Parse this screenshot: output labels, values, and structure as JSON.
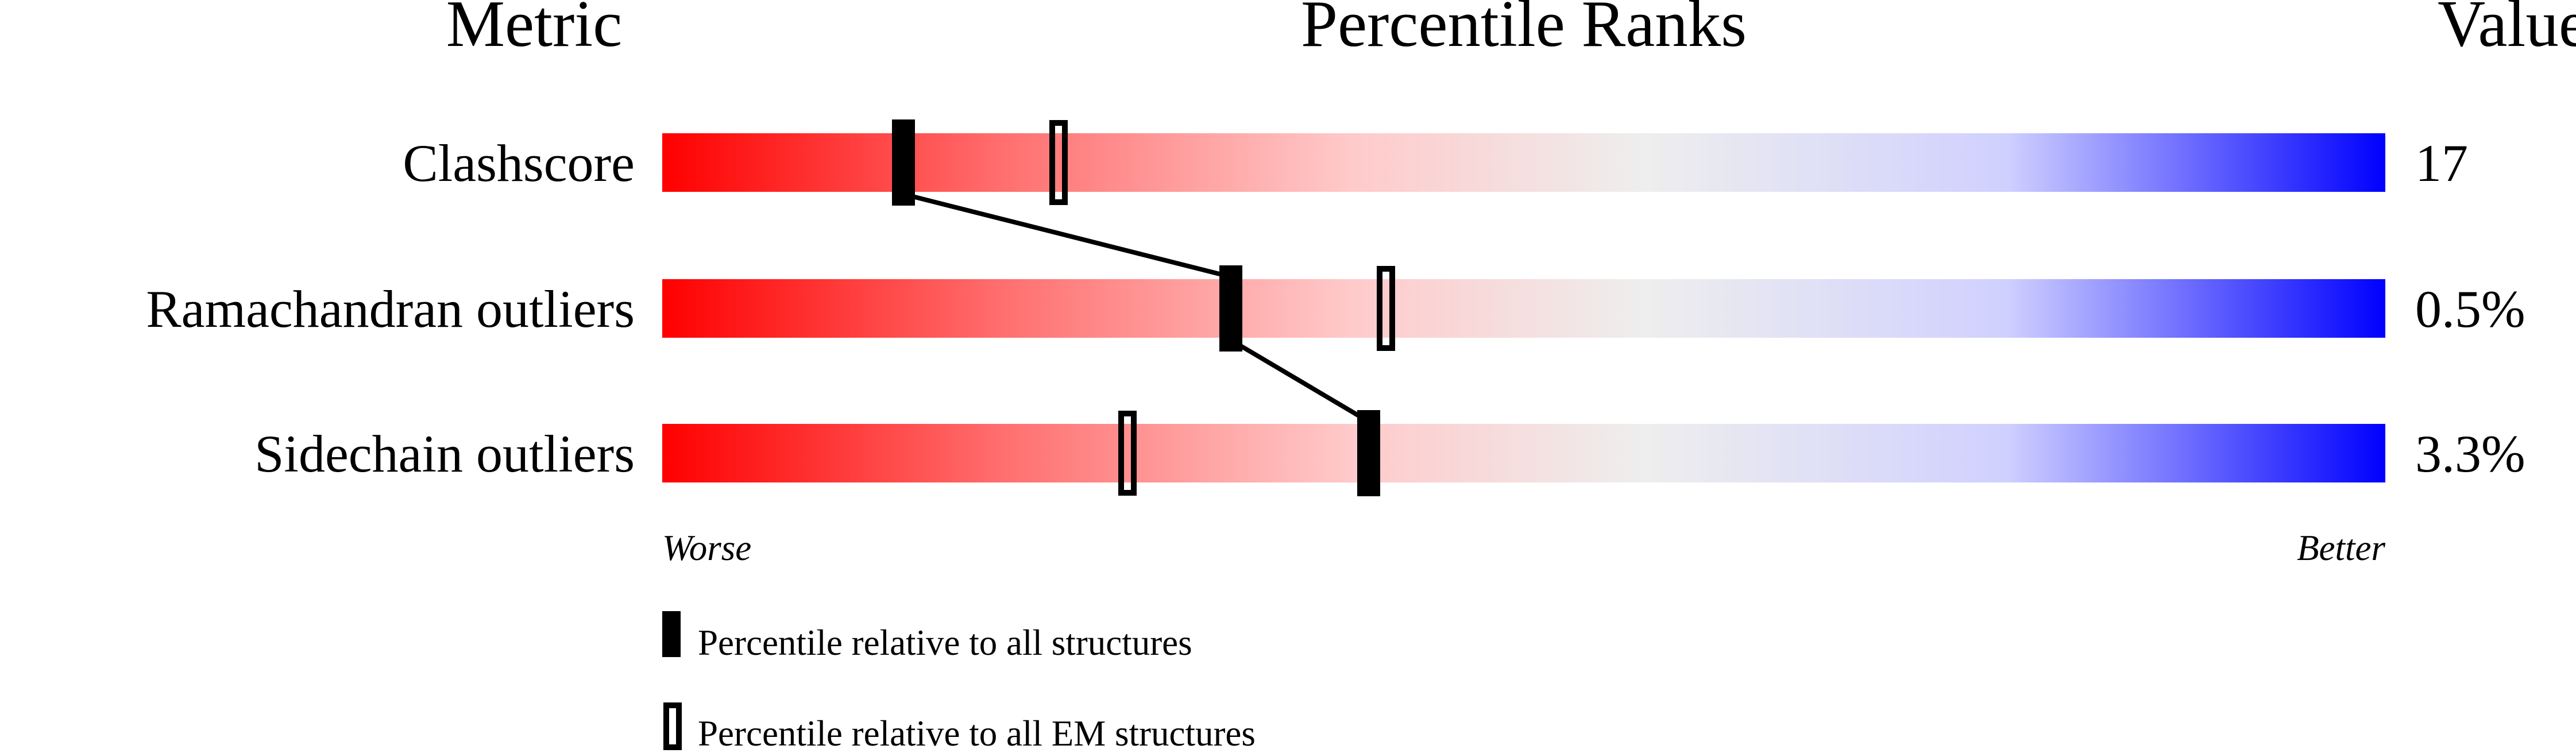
{
  "chart_data": {
    "type": "percentile-slider",
    "headers": {
      "metric": "Metric",
      "ranks": "Percentile Ranks",
      "value": "Value"
    },
    "xlim": [
      0,
      100
    ],
    "axis_labels": {
      "left": "Worse",
      "right": "Better"
    },
    "rows": [
      {
        "metric": "Clashscore",
        "value": "17",
        "percentile_all": 14,
        "percentile_em": 23
      },
      {
        "metric": "Ramachandran outliers",
        "value": "0.5%",
        "percentile_all": 33,
        "percentile_em": 42
      },
      {
        "metric": "Sidechain outliers",
        "value": "3.3%",
        "percentile_all": 41,
        "percentile_em": 27
      }
    ],
    "legend": [
      {
        "marker": "filled",
        "label": "Percentile relative to all structures"
      },
      {
        "marker": "open",
        "label": "Percentile relative to all EM structures"
      }
    ],
    "colors": {
      "worse": "#ff0000",
      "middle": "#eeeeee",
      "better": "#0000ff",
      "marker": "#000000"
    }
  }
}
